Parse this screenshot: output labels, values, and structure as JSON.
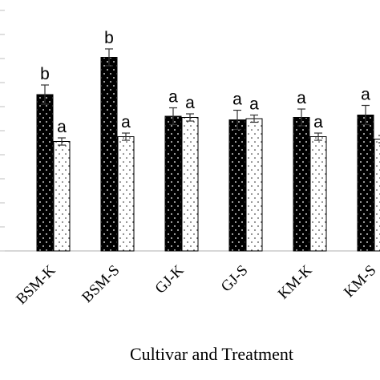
{
  "chart_data": {
    "type": "bar",
    "xlabel": "Cultivar and Treatment",
    "ylabel": "",
    "ylim": [
      0,
      100
    ],
    "categories": [
      "BSM-K",
      "BSM-S",
      "GJ-K",
      "GJ-S",
      "KM-K",
      "KM-S"
    ],
    "series": [
      {
        "pattern": "black-dotted",
        "color": "#000000",
        "values": [
          65,
          80.5,
          56,
          54.5,
          55.5,
          56.5
        ],
        "errors": [
          4,
          3.5,
          3.5,
          4,
          3.5,
          4
        ],
        "labels": [
          "b",
          "b",
          "a",
          "a",
          "a",
          "a"
        ]
      },
      {
        "pattern": "white-dotted",
        "color": "#ffffff",
        "values": [
          45.5,
          47.5,
          55.5,
          55,
          47.5,
          46.5
        ],
        "errors": [
          1.5,
          1.5,
          1.5,
          1.5,
          1.5,
          1.5
        ],
        "labels": [
          "a",
          "a",
          "a",
          "a",
          "a",
          ""
        ]
      }
    ],
    "grid": false,
    "legend": "none"
  }
}
